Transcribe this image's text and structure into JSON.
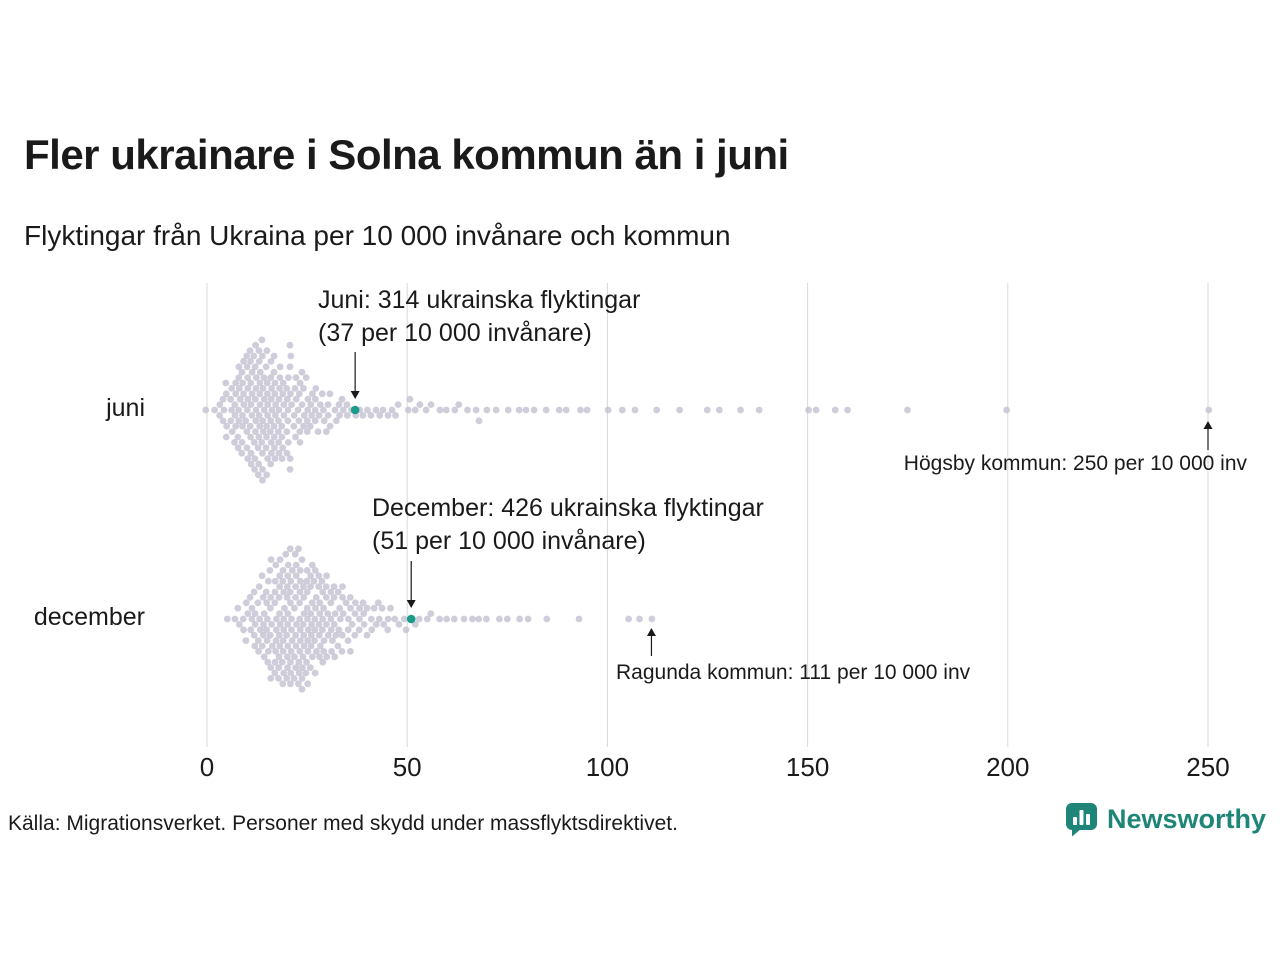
{
  "header": {
    "title": "Fler ukrainare i Solna kommun än i juni",
    "subtitle": "Flyktingar från Ukraina per 10 000 invånare och kommun"
  },
  "footer": {
    "source": "Källa: Migrationsverket. Personer med skydd under massflyktsdirektivet.",
    "brand": "Newsworthy"
  },
  "colors": {
    "dot": "#c4c1d1",
    "highlight": "#1a9c8b",
    "grid": "#d8d8d8",
    "arrow": "#1a1a1a",
    "brand": "#1e8578",
    "text": "#1a1a1a"
  },
  "chart_data": {
    "type": "scatter",
    "variant": "beeswarm",
    "title": "Fler ukrainare i Solna kommun än i juni",
    "subtitle": "Flyktingar från Ukraina per 10 000 invånare och kommun",
    "xlabel": "Flyktingar från Ukraina per 10 000 invånare",
    "x_ticks": [
      0,
      50,
      100,
      150,
      200,
      250
    ],
    "x_range": [
      0,
      255
    ],
    "grid": true,
    "rows": [
      {
        "label": "juni",
        "annotation": {
          "line1": "Juni: 314 ukrainska flyktingar",
          "line2": "(37 per 10 000 invånare)",
          "municipality": "Solna",
          "value": 37
        },
        "outlier_annotation": {
          "text": "Högsby kommun: 250 per 10 000 inv",
          "municipality": "Högsby",
          "value": 250
        },
        "points": [
          [
            0,
            1
          ],
          [
            2,
            1
          ],
          [
            3,
            2
          ],
          [
            4,
            3
          ],
          [
            5,
            4
          ],
          [
            6,
            5
          ],
          [
            7,
            6
          ],
          [
            8,
            8
          ],
          [
            9,
            9
          ],
          [
            10,
            10
          ],
          [
            11,
            11
          ],
          [
            12,
            12
          ],
          [
            13,
            12
          ],
          [
            14,
            12
          ],
          [
            15,
            11
          ],
          [
            16,
            10
          ],
          [
            17,
            10
          ],
          [
            18,
            9
          ],
          [
            19,
            8
          ],
          [
            20,
            8
          ],
          [
            21,
            7
          ],
          [
            22,
            6
          ],
          [
            23,
            6
          ],
          [
            24,
            5
          ],
          [
            25,
            5
          ],
          [
            26,
            4
          ],
          [
            27,
            4
          ],
          [
            28,
            3
          ],
          [
            29,
            3
          ],
          [
            30,
            3
          ],
          [
            31,
            2
          ],
          [
            32,
            2
          ],
          [
            33,
            2
          ],
          [
            34,
            2
          ],
          [
            35,
            2
          ],
          [
            36,
            1
          ],
          [
            37,
            1
          ],
          [
            38,
            1
          ],
          [
            39,
            1
          ],
          [
            40,
            1
          ],
          [
            41,
            1
          ],
          [
            42,
            1
          ],
          [
            43,
            1
          ],
          [
            44,
            1
          ],
          [
            45,
            1
          ],
          [
            46,
            1
          ],
          [
            47,
            1
          ],
          [
            48,
            1
          ],
          [
            50,
            1
          ],
          [
            51,
            1
          ],
          [
            52,
            1
          ],
          [
            53,
            1
          ],
          [
            55,
            1
          ],
          [
            56,
            1
          ],
          [
            58,
            1
          ],
          [
            60,
            1
          ],
          [
            62,
            1
          ],
          [
            63,
            1
          ],
          [
            65,
            1
          ],
          [
            67,
            1
          ],
          [
            68,
            1
          ],
          [
            70,
            1
          ],
          [
            72,
            1
          ],
          [
            75,
            1
          ],
          [
            78,
            1
          ],
          [
            80,
            1
          ],
          [
            82,
            1
          ],
          [
            85,
            1
          ],
          [
            88,
            1
          ],
          [
            90,
            1
          ],
          [
            93,
            1
          ],
          [
            95,
            1
          ],
          [
            100,
            1
          ],
          [
            104,
            1
          ],
          [
            107,
            1
          ],
          [
            112,
            1
          ],
          [
            118,
            1
          ],
          [
            125,
            1
          ],
          [
            128,
            1
          ],
          [
            133,
            1
          ],
          [
            138,
            1
          ],
          [
            150,
            1
          ],
          [
            152,
            1
          ],
          [
            157,
            1
          ],
          [
            160,
            1
          ],
          [
            175,
            1
          ],
          [
            200,
            1
          ],
          [
            250,
            1
          ]
        ]
      },
      {
        "label": "december",
        "annotation": {
          "line1": "December: 426 ukrainska flyktingar",
          "line2": "(51 per 10 000 invånare)",
          "municipality": "Solna",
          "value": 51
        },
        "outlier_annotation": {
          "text": "Ragunda kommun: 111 per 10 000 inv",
          "municipality": "Ragunda",
          "value": 111
        },
        "points": [
          [
            5,
            1
          ],
          [
            7,
            1
          ],
          [
            8,
            2
          ],
          [
            9,
            2
          ],
          [
            10,
            3
          ],
          [
            11,
            4
          ],
          [
            12,
            5
          ],
          [
            13,
            6
          ],
          [
            14,
            7
          ],
          [
            15,
            8
          ],
          [
            16,
            9
          ],
          [
            17,
            10
          ],
          [
            18,
            11
          ],
          [
            19,
            11
          ],
          [
            20,
            12
          ],
          [
            21,
            12
          ],
          [
            22,
            12
          ],
          [
            23,
            12
          ],
          [
            24,
            11
          ],
          [
            25,
            11
          ],
          [
            26,
            10
          ],
          [
            27,
            9
          ],
          [
            28,
            8
          ],
          [
            29,
            8
          ],
          [
            30,
            7
          ],
          [
            31,
            6
          ],
          [
            32,
            6
          ],
          [
            33,
            5
          ],
          [
            34,
            5
          ],
          [
            35,
            4
          ],
          [
            36,
            4
          ],
          [
            37,
            3
          ],
          [
            38,
            3
          ],
          [
            39,
            3
          ],
          [
            40,
            2
          ],
          [
            41,
            2
          ],
          [
            42,
            2
          ],
          [
            43,
            2
          ],
          [
            44,
            2
          ],
          [
            45,
            2
          ],
          [
            46,
            1
          ],
          [
            47,
            1
          ],
          [
            48,
            1
          ],
          [
            49,
            1
          ],
          [
            50,
            1
          ],
          [
            51,
            1
          ],
          [
            52,
            1
          ],
          [
            53,
            1
          ],
          [
            55,
            1
          ],
          [
            56,
            1
          ],
          [
            58,
            1
          ],
          [
            60,
            1
          ],
          [
            62,
            1
          ],
          [
            64,
            1
          ],
          [
            66,
            1
          ],
          [
            68,
            1
          ],
          [
            70,
            1
          ],
          [
            73,
            1
          ],
          [
            75,
            1
          ],
          [
            78,
            1
          ],
          [
            80,
            1
          ],
          [
            85,
            1
          ],
          [
            93,
            1
          ],
          [
            105,
            1
          ],
          [
            108,
            1
          ],
          [
            111,
            1
          ]
        ]
      }
    ]
  }
}
